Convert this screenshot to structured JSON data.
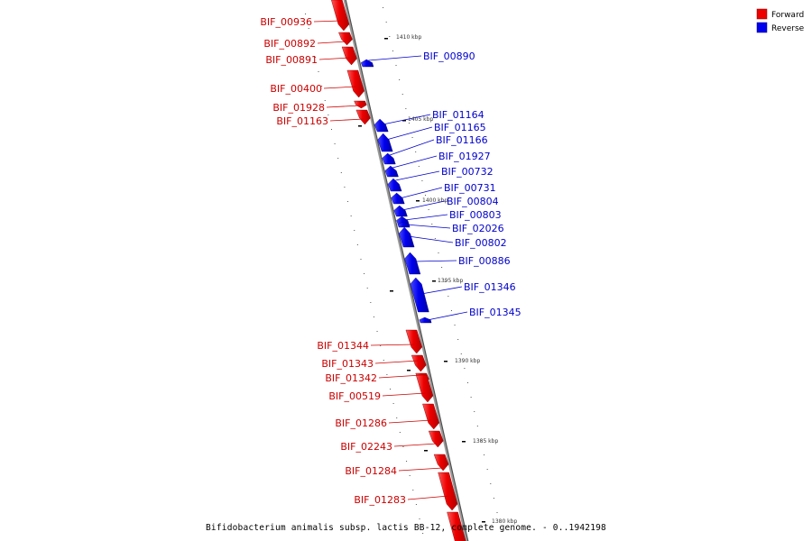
{
  "legend": {
    "forward": {
      "label": "Forward",
      "color": "#ee0000"
    },
    "reverse": {
      "label": "Reverse",
      "color": "#0000ee"
    }
  },
  "caption": "Bifidobacterium animalis subsp. lactis BB-12, complete genome. - 0..1942198",
  "kbp_ticks": [
    "1410 kbp",
    "1405 kbp",
    "1400 kbp",
    "1395 kbp",
    "1390 kbp",
    "1385 kbp",
    "1380 kbp"
  ],
  "genes_forward": [
    "BIF_00936",
    "BIF_00892",
    "BIF_00891",
    "BIF_00400",
    "BIF_01928",
    "BIF_01163",
    "BIF_01344",
    "BIF_01343",
    "BIF_01342",
    "BIF_00519",
    "BIF_01286",
    "BIF_02243",
    "BIF_01284",
    "BIF_01283"
  ],
  "genes_reverse": [
    "BIF_00890",
    "BIF_01164",
    "BIF_01165",
    "BIF_01166",
    "BIF_01927",
    "BIF_00732",
    "BIF_00731",
    "BIF_00804",
    "BIF_00803",
    "BIF_02026",
    "BIF_00802",
    "BIF_00886",
    "BIF_01346",
    "BIF_01345"
  ]
}
